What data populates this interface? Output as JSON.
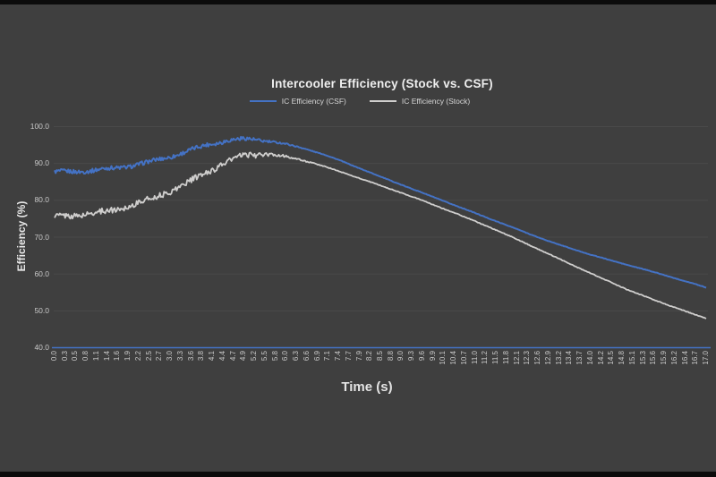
{
  "frame": {
    "background_color": "#3f3f3f",
    "letterbox_color": "#0b0b0b"
  },
  "chart": {
    "title": "Intercooler Efficiency (Stock vs. CSF)",
    "x_axis_title": "Time (s)",
    "y_axis_title": "Efficiency (%)",
    "axis_line_color": "#4472c4",
    "grid_color": "#4a4a4a",
    "legend": [
      {
        "label": "IC Efficiency (CSF)",
        "color": "#4472c4"
      },
      {
        "label": "IC Efficiency (Stock)",
        "color": "#cfcecd"
      }
    ]
  },
  "chart_data": {
    "type": "line",
    "title": "Intercooler Efficiency (Stock vs. CSF)",
    "xlabel": "Time (s)",
    "ylabel": "Efficiency (%)",
    "xlim": [
      0,
      17
    ],
    "ylim": [
      40,
      100
    ],
    "grid": "horizontal-only",
    "legend_position": "top-center",
    "y_tick_labels": [
      "100.0",
      "90.0",
      "80.0",
      "70.0",
      "60.0",
      "50.0",
      "40.0"
    ],
    "x_tick_labels": [
      "0.0",
      "0.3",
      "0.5",
      "0.8",
      "1.1",
      "1.4",
      "1.6",
      "1.9",
      "2.2",
      "2.5",
      "2.7",
      "3.0",
      "3.3",
      "3.6",
      "3.8",
      "4.1",
      "4.4",
      "4.7",
      "4.9",
      "5.2",
      "5.5",
      "5.8",
      "6.0",
      "6.3",
      "6.6",
      "6.9",
      "7.1",
      "7.4",
      "7.7",
      "7.9",
      "8.2",
      "8.5",
      "8.8",
      "9.0",
      "9.3",
      "9.6",
      "9.9",
      "10.1",
      "10.4",
      "10.7",
      "11.0",
      "11.2",
      "11.5",
      "11.8",
      "12.1",
      "12.3",
      "12.6",
      "12.9",
      "13.2",
      "13.4",
      "13.7",
      "14.0",
      "14.2",
      "14.5",
      "14.8",
      "15.1",
      "15.3",
      "15.6",
      "15.9",
      "16.2",
      "16.4",
      "16.7",
      "17.0"
    ],
    "x": [
      0,
      0.5,
      1,
      1.5,
      2,
      2.5,
      3,
      3.5,
      4,
      4.5,
      5,
      5.5,
      6,
      6.5,
      7,
      7.5,
      8,
      8.5,
      9,
      9.5,
      10,
      10.5,
      11,
      11.5,
      12,
      12.5,
      13,
      13.5,
      14,
      14.5,
      15,
      15.5,
      16,
      16.5,
      17
    ],
    "series": [
      {
        "name": "IC Efficiency (CSF)",
        "color": "#4472c4",
        "noise_amplitude": 0.55,
        "y": [
          87.5,
          87.7,
          88.0,
          88.5,
          89.3,
          90.3,
          91.7,
          93.3,
          95.0,
          96.2,
          96.5,
          96.1,
          95.2,
          94.0,
          92.4,
          90.5,
          88.4,
          86.3,
          84.3,
          82.3,
          80.3,
          78.3,
          76.3,
          74.3,
          72.3,
          70.3,
          68.4,
          66.7,
          65.1,
          63.6,
          62.2,
          60.8,
          59.3,
          57.8,
          56.2
        ]
      },
      {
        "name": "IC Efficiency (Stock)",
        "color": "#cfcecd",
        "noise_amplitude": 0.75,
        "y": [
          75.5,
          75.8,
          76.3,
          77.2,
          78.5,
          80.2,
          82.3,
          84.8,
          87.6,
          90.4,
          92.2,
          92.4,
          91.8,
          90.7,
          89.2,
          87.5,
          85.7,
          83.9,
          82.1,
          80.2,
          78.2,
          76.2,
          74.1,
          71.9,
          69.6,
          67.2,
          64.8,
          62.4,
          60.0,
          57.7,
          55.4,
          53.4,
          51.5,
          49.6,
          47.8
        ]
      }
    ]
  }
}
